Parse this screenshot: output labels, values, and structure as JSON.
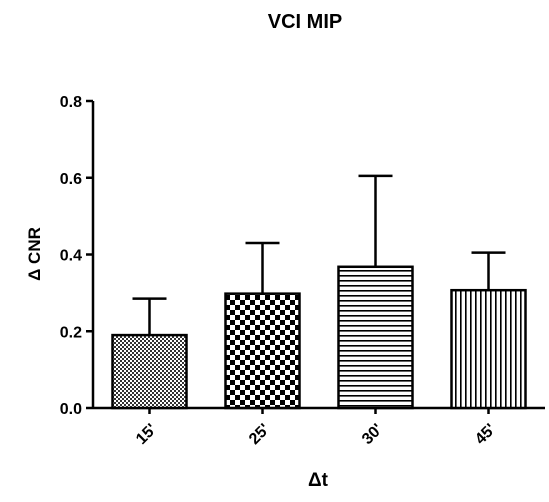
{
  "chart_data": {
    "type": "bar",
    "title": "VCI MIP",
    "xlabel": "Δt",
    "ylabel": "Δ CNR",
    "categories": [
      "15'",
      "25'",
      "30'",
      "45'"
    ],
    "values": [
      0.19,
      0.298,
      0.368,
      0.307
    ],
    "error_upper": [
      0.285,
      0.43,
      0.605,
      0.405
    ],
    "bar_patterns": [
      "fine-crosshatch",
      "checkerboard",
      "horizontal-stripes",
      "vertical-stripes"
    ],
    "ylim": [
      0.0,
      0.8
    ],
    "yticks": [
      "0.0",
      "0.2",
      "0.4",
      "0.6",
      "0.8"
    ],
    "grid": false,
    "colors": {
      "bar_fill": "#000000",
      "background": "#ffffff"
    }
  }
}
